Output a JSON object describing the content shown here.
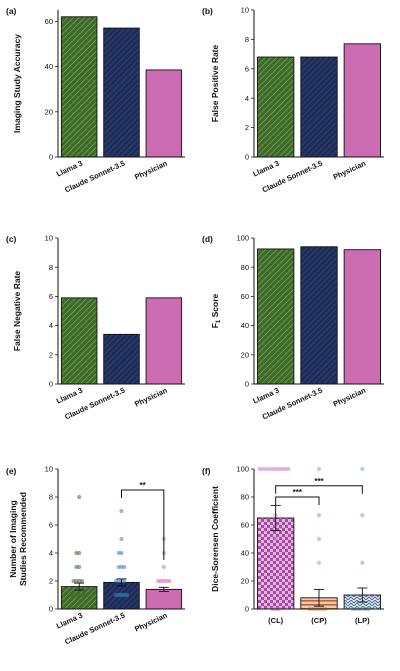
{
  "colors": {
    "llama": "#3f6b2a",
    "claude": "#1e2d57",
    "physician": "#cc6db3",
    "cl": "#c77fc4",
    "cp": "#d98b6a",
    "lp": "#7ea1c2"
  },
  "chart_data": [
    {
      "id": "a",
      "panel_label": "(a)",
      "type": "bar",
      "categories": [
        "Llama 3",
        "Claude Sonnet-3.5",
        "Physician"
      ],
      "values": [
        62,
        57,
        38.5
      ],
      "ylabel": "Imaging Study Accuracy",
      "ylim": [
        0,
        65
      ],
      "yticks": [
        0,
        20,
        40,
        60
      ],
      "patterns": [
        "hatch-llama",
        "hatch-claude",
        "solid-physician"
      ]
    },
    {
      "id": "b",
      "panel_label": "(b)",
      "type": "bar",
      "categories": [
        "Llama 3",
        "Claude Sonnet-3.5",
        "Physician"
      ],
      "values": [
        6.8,
        6.8,
        7.7
      ],
      "ylabel": "False Positive Rate",
      "ylim": [
        0,
        10
      ],
      "yticks": [
        0,
        2,
        4,
        6,
        8,
        10
      ],
      "patterns": [
        "hatch-llama",
        "hatch-claude",
        "solid-physician"
      ]
    },
    {
      "id": "c",
      "panel_label": "(c)",
      "type": "bar",
      "categories": [
        "Llama 3",
        "Claude Sonnet-3.5",
        "Physician"
      ],
      "values": [
        5.9,
        3.4,
        5.9
      ],
      "ylabel": "False Negative Rate",
      "ylim": [
        0,
        10
      ],
      "yticks": [
        0,
        2,
        4,
        6,
        8,
        10
      ],
      "patterns": [
        "hatch-llama",
        "hatch-claude",
        "solid-physician"
      ]
    },
    {
      "id": "d",
      "panel_label": "(d)",
      "type": "bar",
      "categories": [
        "Llama 3",
        "Claude Sonnet-3.5",
        "Physician"
      ],
      "values": [
        92.5,
        94,
        92
      ],
      "ylabel": "F",
      "ylabel_sub": "1",
      "ylabel_rest": " Score",
      "ylim": [
        0,
        100
      ],
      "yticks": [
        0,
        20,
        40,
        60,
        80,
        100
      ],
      "patterns": [
        "hatch-llama",
        "hatch-claude",
        "solid-physician"
      ]
    },
    {
      "id": "e",
      "panel_label": "(e)",
      "type": "bar",
      "categories": [
        "Llama 3",
        "Claude Sonnet-3.5",
        "Physician"
      ],
      "values": [
        1.6,
        1.9,
        1.4
      ],
      "errors": [
        0.25,
        0.25,
        0.15
      ],
      "points": [
        [
          1,
          1,
          1,
          1,
          1,
          1,
          2,
          2,
          2,
          2,
          3,
          3,
          4,
          4,
          8
        ],
        [
          1,
          1,
          1,
          1,
          1,
          2,
          2,
          2,
          2,
          3,
          3,
          3,
          4,
          4,
          5,
          7
        ],
        [
          1,
          1,
          1,
          1,
          1,
          1,
          1,
          2,
          2,
          2,
          2,
          2,
          3,
          4,
          5
        ]
      ],
      "ylabel": "Number of Imaging",
      "ylabel2": "Studies Recommended",
      "ylim": [
        0,
        10
      ],
      "yticks": [
        0,
        2,
        4,
        6,
        8,
        10
      ],
      "patterns": [
        "hatch-llama",
        "hatch-claude",
        "solid-physician"
      ],
      "significance": [
        {
          "from": 1,
          "to": 2,
          "y": 8.5,
          "label": "**"
        }
      ]
    },
    {
      "id": "f",
      "panel_label": "(f)",
      "type": "bar",
      "categories": [
        "(CL)",
        "(CP)",
        "(LP)"
      ],
      "values": [
        65,
        8,
        10
      ],
      "errors": [
        9,
        6,
        5
      ],
      "points": [
        [
          0,
          0,
          0,
          50,
          60,
          67,
          100,
          100,
          100,
          100,
          100,
          100,
          100,
          100,
          100,
          100
        ],
        [
          0,
          0,
          0,
          0,
          0,
          0,
          33,
          50,
          67,
          100
        ],
        [
          0,
          0,
          0,
          0,
          0,
          0,
          33,
          67,
          100
        ]
      ],
      "ylabel": "Dice-Sorensen Coefficient",
      "ylim": [
        0,
        100
      ],
      "yticks": [
        0,
        20,
        40,
        60,
        80,
        100
      ],
      "patterns": [
        "check-cl",
        "stripe-cp",
        "wave-lp"
      ],
      "significance": [
        {
          "from": 0,
          "to": 1,
          "y": 80,
          "label": "***"
        },
        {
          "from": 0,
          "to": 2,
          "y": 88,
          "label": "***"
        }
      ]
    }
  ]
}
